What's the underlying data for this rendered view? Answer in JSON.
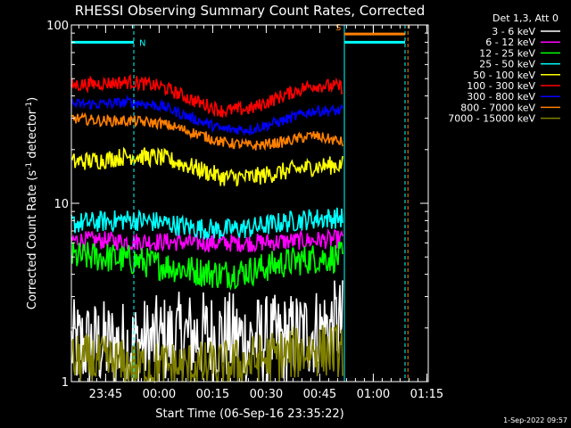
{
  "chart_data": {
    "type": "line",
    "title": "RHESSI Observing Summary Count Rates, Corrected",
    "xlabel": "Start Time (06-Sep-16 23:35:22)",
    "ylabel_main": "Corrected Count Rate (s",
    "ylabel_sup1": "-1",
    "ylabel_mid": " detector",
    "ylabel_sup2": "-1",
    "ylabel_end": ")",
    "y_scale": "log",
    "ylim": [
      1,
      100
    ],
    "xlim_minutes": [
      0,
      100
    ],
    "x_tick_labels": [
      {
        "label": "23:45",
        "minute": 9.6
      },
      {
        "label": "00:00",
        "minute": 24.6
      },
      {
        "label": "00:15",
        "minute": 39.6
      },
      {
        "label": "00:30",
        "minute": 54.6
      },
      {
        "label": "00:45",
        "minute": 69.6
      },
      {
        "label": "01:00",
        "minute": 84.6
      },
      {
        "label": "01:15",
        "minute": 99.6
      }
    ],
    "y_tick_labels": [
      {
        "label": "1",
        "value": 1
      },
      {
        "label": "10",
        "value": 10
      },
      {
        "label": "100",
        "value": 100
      }
    ],
    "legend_header": "Det 1,3, Att 0",
    "legend_position": "top-right, outside plot",
    "footer_date": "1-Sep-2022 09:57",
    "data_end_minute": 76,
    "series": [
      {
        "name": "3 - 6 keV",
        "color": "#ffffff",
        "profile": [
          1.6,
          1.6,
          1.6,
          1.7,
          1.8,
          1.8,
          1.7,
          1.7,
          1.9,
          2.1
        ],
        "noise": 0.6
      },
      {
        "name": "6 - 12 keV",
        "color": "#ff00ff",
        "profile": [
          6.2,
          6.2,
          6.1,
          6.1,
          6.0,
          6.0,
          6.0,
          6.1,
          6.2,
          6.3
        ],
        "noise": 0.12
      },
      {
        "name": "12 - 25 keV",
        "color": "#00ff00",
        "profile": [
          5.0,
          5.0,
          4.8,
          4.5,
          4.2,
          4.0,
          4.2,
          4.6,
          4.9,
          5.0
        ],
        "noise": 0.2
      },
      {
        "name": "25 - 50 keV",
        "color": "#00ffff",
        "profile": [
          7.7,
          7.9,
          8.1,
          7.8,
          7.3,
          7.1,
          7.3,
          7.8,
          8.2,
          8.3
        ],
        "noise": 0.14
      },
      {
        "name": "50 - 100 keV",
        "color": "#ffff00",
        "profile": [
          17,
          17.5,
          18.5,
          18,
          16,
          14,
          14,
          15,
          16,
          16.5
        ],
        "noise": 0.12
      },
      {
        "name": "100 - 300 keV",
        "color": "#ff0000",
        "profile": [
          46,
          47,
          48,
          45,
          38,
          33,
          34,
          40,
          46,
          45
        ],
        "noise": 0.09
      },
      {
        "name": "300 - 800 keV",
        "color": "#0000ff",
        "profile": [
          36,
          36,
          37,
          35,
          30,
          26,
          26,
          29,
          33,
          33
        ],
        "noise": 0.07
      },
      {
        "name": "800 - 7000 keV",
        "color": "#ff8000",
        "profile": [
          30,
          29,
          29,
          28,
          25,
          22,
          21,
          22,
          24,
          22
        ],
        "noise": 0.07
      },
      {
        "name": "7000 - 15000 keV",
        "color": "#808000",
        "profile": [
          1.3,
          1.3,
          1.2,
          1.2,
          1.2,
          1.2,
          1.3,
          1.4,
          1.5,
          1.5
        ],
        "noise": 0.35
      }
    ],
    "annotations": [
      {
        "label": "N",
        "color": "#00ffff",
        "start_minute": 0,
        "end_minute": 17.5,
        "level": 80
      },
      {
        "label": "S",
        "color": "#ff8000",
        "start_minute": 76.5,
        "end_minute": 93.5,
        "level": 89
      },
      {
        "label": "",
        "color": "#00ffff",
        "start_minute": 76.5,
        "end_minute": 93.5,
        "level": 80
      }
    ],
    "vertical_markers": [
      {
        "minute": 17.5,
        "color": "#00ffff",
        "dashed": true
      },
      {
        "minute": 76.5,
        "color": "#00ffff",
        "dashed": false
      },
      {
        "minute": 93.5,
        "color": "#00ffff",
        "dashed": true
      },
      {
        "minute": 94.3,
        "color": "#ff8000",
        "dashed": true
      }
    ]
  }
}
